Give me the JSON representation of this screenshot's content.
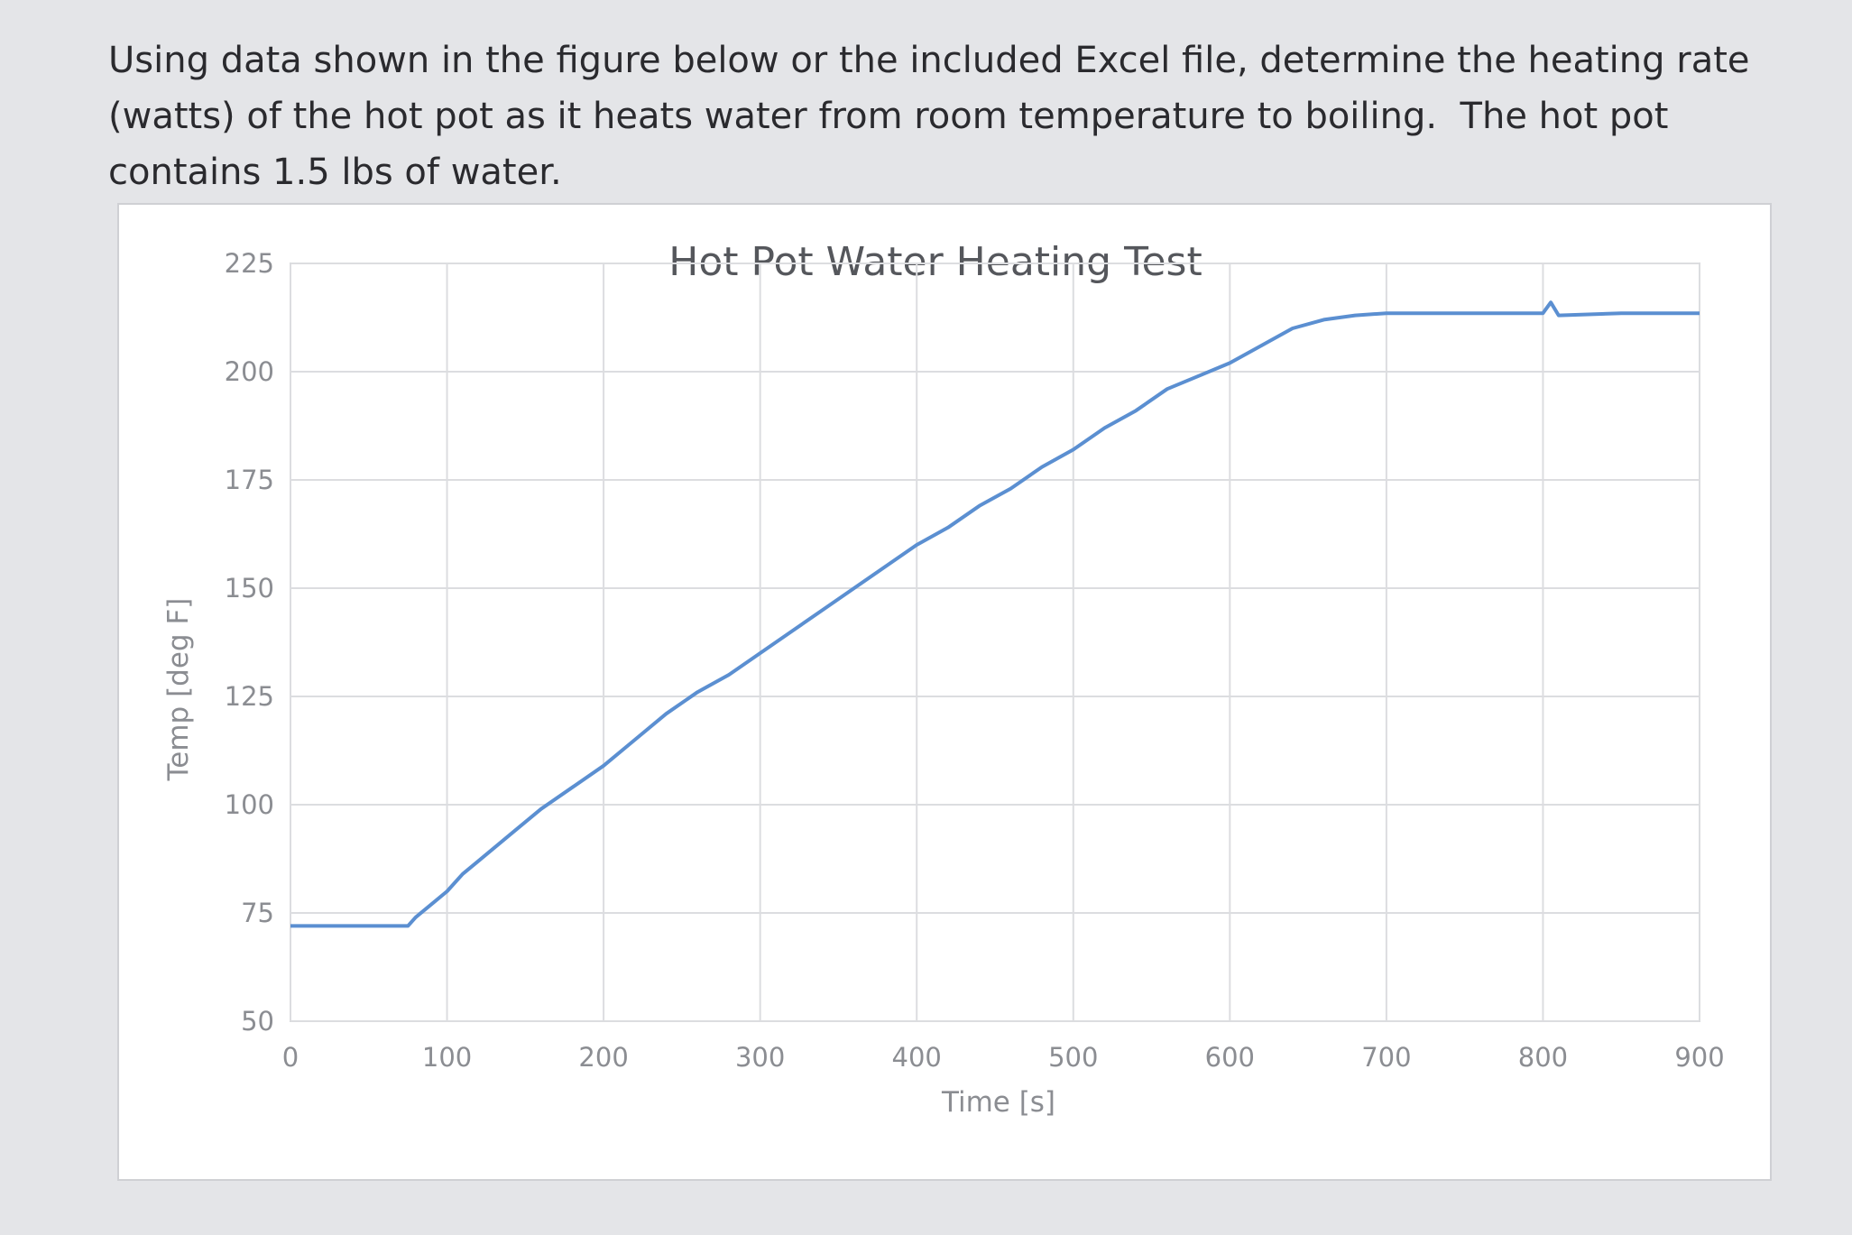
{
  "prompt": {
    "text": "Using data shown in the figure below or the included Excel file, determine the heating rate (watts) of the hot pot as it heats water from room temperature to boiling.  The hot pot contains 1.5 lbs of water."
  },
  "chart_data": {
    "type": "line",
    "title": "Hot Pot Water Heating Test",
    "xlabel": "Time [s]",
    "ylabel": "Temp [deg F]",
    "xlim": [
      0,
      900
    ],
    "ylim": [
      50,
      225
    ],
    "xticks": [
      0,
      100,
      200,
      300,
      400,
      500,
      600,
      700,
      800,
      900
    ],
    "yticks": [
      50,
      75,
      100,
      125,
      150,
      175,
      200,
      225
    ],
    "grid": true,
    "line_color": "#5b8fd1",
    "series": [
      {
        "x": [
          0,
          75,
          80,
          90,
          100,
          110,
          120,
          140,
          160,
          180,
          200,
          220,
          240,
          260,
          280,
          300,
          320,
          340,
          360,
          380,
          400,
          420,
          440,
          460,
          480,
          500,
          520,
          540,
          560,
          580,
          600,
          620,
          640,
          660,
          680,
          700,
          720,
          750,
          800,
          805,
          810,
          850,
          900
        ],
        "y": [
          72,
          72,
          74,
          77,
          80,
          84,
          87,
          93,
          99,
          104,
          109,
          115,
          121,
          126,
          130,
          135,
          140,
          145,
          150,
          155,
          160,
          164,
          169,
          173,
          178,
          182,
          187,
          191,
          196,
          199,
          202,
          206,
          210,
          212,
          213,
          213.5,
          213.5,
          213.5,
          213.5,
          216,
          213,
          213.5,
          213.5
        ]
      }
    ]
  }
}
